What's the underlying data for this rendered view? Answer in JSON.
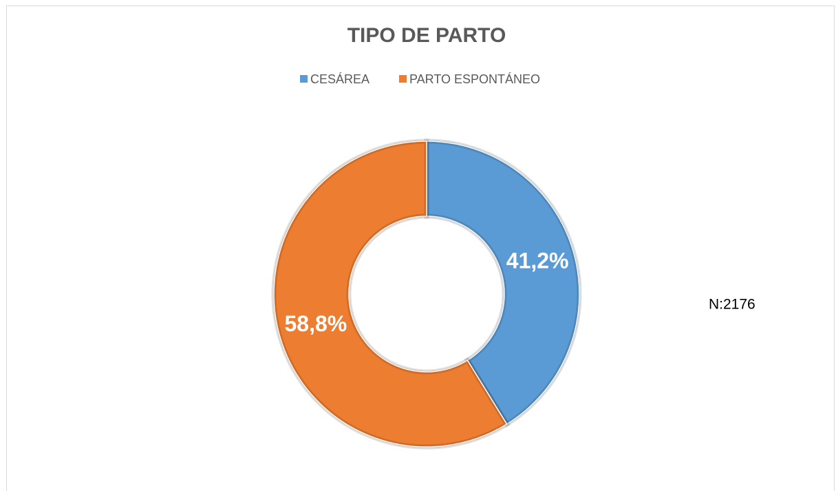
{
  "chart_data": {
    "type": "donut",
    "title": "TIPO DE PARTO",
    "categories": [
      "CESÁREA",
      "PARTO ESPONTÁNEO"
    ],
    "values": [
      41.2,
      58.8
    ],
    "value_labels": [
      "41,2%",
      "58,8%"
    ],
    "colors": [
      "#5b9bd5",
      "#ed7d31"
    ],
    "legend": "top",
    "annotation": "N:2176"
  }
}
